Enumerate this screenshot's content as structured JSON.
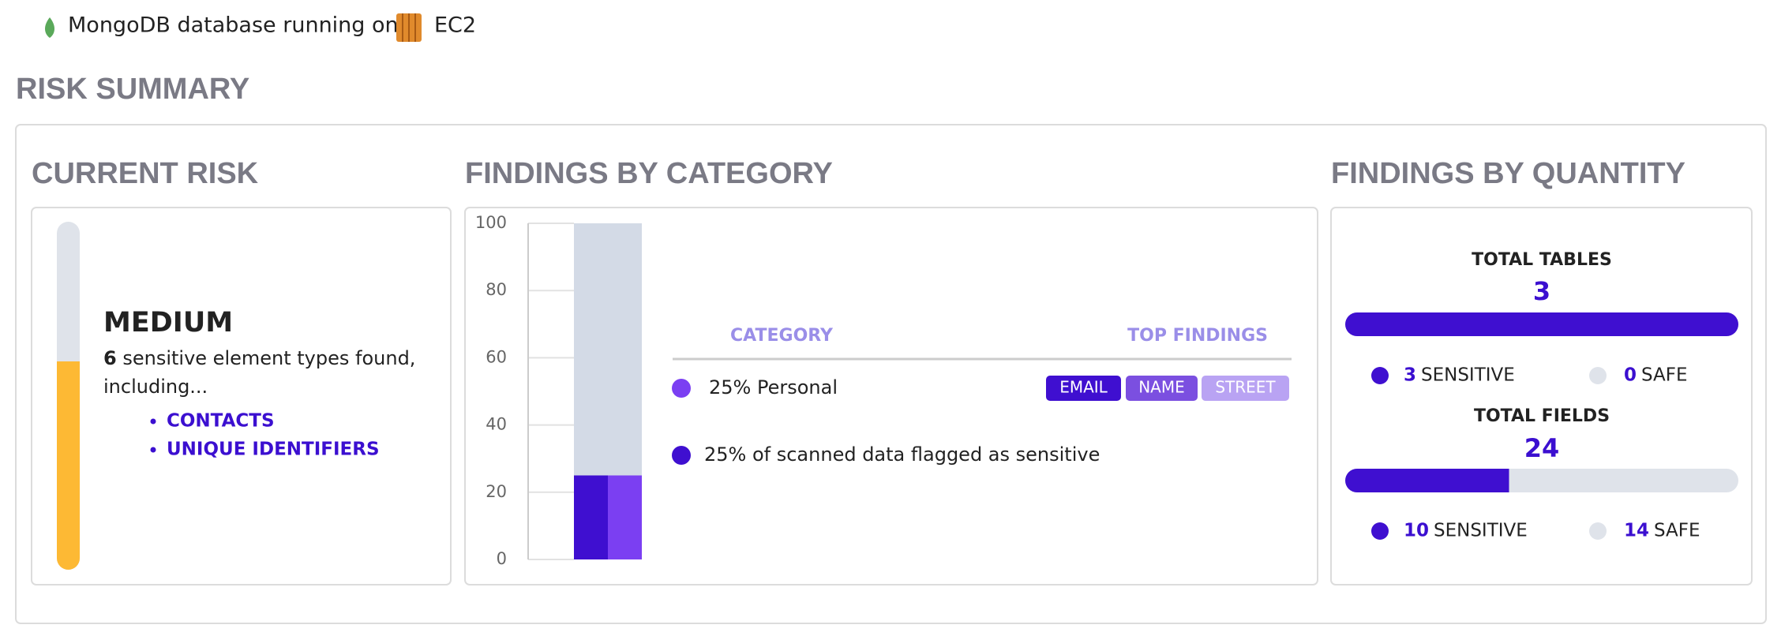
{
  "header": {
    "text": "MongoDB database running on",
    "platform": "EC2"
  },
  "section_title": "RISK SUMMARY",
  "current_risk": {
    "title": "CURRENT RISK",
    "level": "MEDIUM",
    "count": 6,
    "description": "sensitive element types found,",
    "description_cont": "including...",
    "items": [
      "CONTACTS",
      "UNIQUE IDENTIFIERS"
    ]
  },
  "findings_by_category": {
    "title": "FINDINGS BY CATEGORY",
    "chart": {
      "type": "bar",
      "ylim": [
        0,
        100
      ],
      "yticks": [
        0,
        20,
        40,
        60,
        80,
        100
      ],
      "total": 100,
      "total_color": "#d3dae6",
      "values": [
        25,
        25
      ],
      "colors": [
        "#3f0fd0",
        "#7b3ff2"
      ]
    },
    "legend": {
      "category_header": "CATEGORY",
      "findings_header": "TOP FINDINGS",
      "row": {
        "label": "25% Personal",
        "color": "#7b3ff2",
        "tags": [
          "EMAIL",
          "NAME",
          "STREET"
        ],
        "tag_colors": [
          "#3f0fd0",
          "#7b4fe0",
          "#b9a3f3"
        ]
      },
      "footer": {
        "label": "25% of scanned data flagged as sensitive",
        "color": "#3f0fd0"
      }
    }
  },
  "findings_by_quantity": {
    "title": "FINDINGS BY QUANTITY",
    "sensitive_label": "SENSITIVE",
    "safe_label": "SAFE",
    "groups": [
      {
        "label": "TOTAL TABLES",
        "total": 3,
        "sensitive": 3,
        "safe": 0
      },
      {
        "label": "TOTAL FIELDS",
        "total": 24,
        "sensitive": 10,
        "safe": 14
      }
    ]
  }
}
